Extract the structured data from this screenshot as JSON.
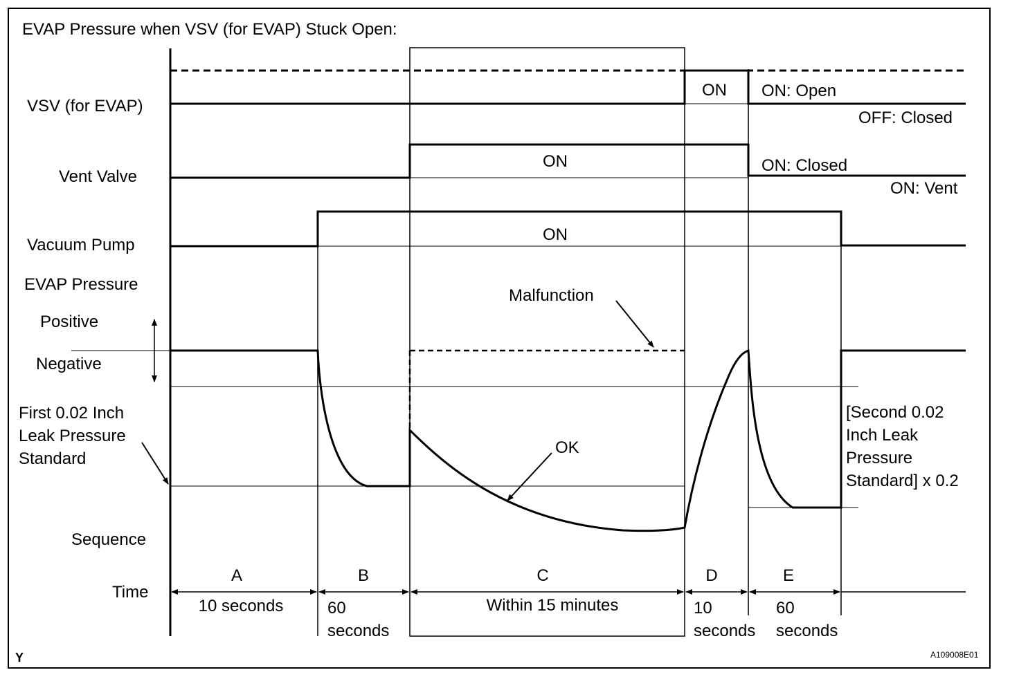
{
  "title": "EVAP Pressure when VSV (for EVAP) Stuck Open:",
  "rows": {
    "vsv": "VSV (for EVAP)",
    "vent_valve": "Vent Valve",
    "vacuum_pump": "Vacuum Pump",
    "evap_pressure": "EVAP Pressure",
    "positive": "Positive",
    "negative": "Negative",
    "first_standard": "First 0.02 Inch\nLeak Pressure\nStandard",
    "sequence": "Sequence",
    "time": "Time"
  },
  "labels": {
    "vsv_on": "ON",
    "vsv_on_open": "ON: Open",
    "vsv_off_closed": "OFF: Closed",
    "vent_on": "ON",
    "vent_on_closed": "ON: Closed",
    "vent_on_vent": "ON: Vent",
    "pump_on": "ON",
    "malfunction": "Malfunction",
    "ok": "OK",
    "second_standard": "[Second 0.02\nInch Leak\nPressure\nStandard] x 0.2"
  },
  "sequence": [
    {
      "id": "A",
      "time": "10 seconds"
    },
    {
      "id": "B",
      "time": "60\nseconds"
    },
    {
      "id": "C",
      "time": "Within 15 minutes"
    },
    {
      "id": "D",
      "time": "10\nseconds"
    },
    {
      "id": "E",
      "time": "60\nseconds"
    }
  ],
  "corner_mark": "Y",
  "figure_code": "A109008E01"
}
